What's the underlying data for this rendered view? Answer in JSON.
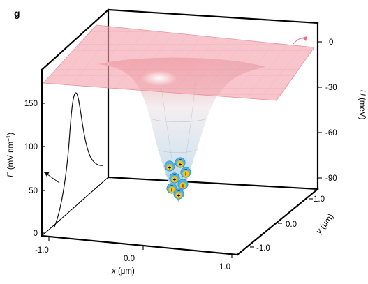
{
  "panel_label": "g",
  "axes": {
    "x": {
      "label_var": "x",
      "label_unit": " (μm)",
      "ticks": [
        "-1.0",
        "0.0",
        "1.0"
      ]
    },
    "y": {
      "label_var": "y",
      "label_unit": " (μm)",
      "ticks": [
        "1.0",
        "0.0",
        "-1.0"
      ]
    },
    "energy": {
      "label_var": "E",
      "label_unit": " (mV nm",
      "label_exp": "−1",
      "label_close": ")",
      "ticks": [
        "150",
        "100",
        "50",
        "0"
      ]
    },
    "potential": {
      "label_var": "U",
      "label_unit": " (meV)",
      "ticks": [
        "0",
        "-30",
        "-60",
        "-90"
      ]
    }
  },
  "particles": {
    "count": 7,
    "plus_symbol": "+",
    "minus_symbol": "−",
    "outer_color": "#4fb3e0",
    "inner_color": "#f2c318"
  },
  "colors": {
    "plane": "#f2a2ab",
    "well_top": "#e8a0a8",
    "well_bottom": "#9ccbe6",
    "arrow": "#e8707c"
  }
}
